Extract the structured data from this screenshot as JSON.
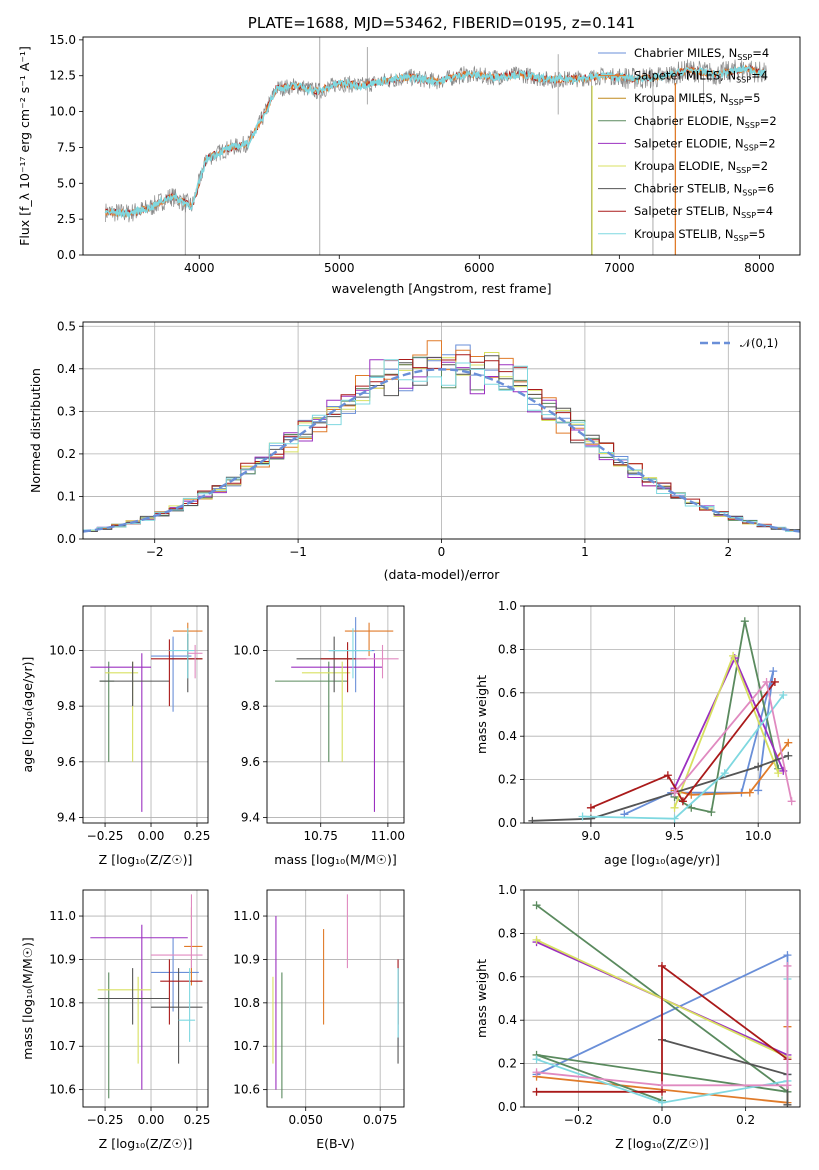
{
  "colors": [
    "#6a8fd8",
    "#e07b2a",
    "#c08a1e",
    "#5a8a5e",
    "#9b30c0",
    "#d8e060",
    "#555555",
    "#aa1a1a",
    "#7fd8e0",
    "#e08ac0"
  ],
  "chart_data": [
    {
      "id": "spectrum",
      "type": "line",
      "title": "PLATE=1688, MJD=53462, FIBERID=0195, z=0.141",
      "xlabel": "wavelength [Angstrom, rest frame]",
      "ylabel": "Flux [f_λ 10⁻¹⁷ erg cm⁻² s⁻¹ A⁻¹]",
      "xlim": [
        3170,
        8290
      ],
      "ylim": [
        0,
        15.2
      ],
      "xticks": [
        "4000",
        "5000",
        "6000",
        "7000",
        "8000"
      ],
      "yticks": [
        "0.0",
        "2.5",
        "5.0",
        "7.5",
        "10.0",
        "12.5",
        "15.0"
      ],
      "envelope": [
        [
          3330,
          3.0
        ],
        [
          3500,
          2.9
        ],
        [
          3650,
          3.3
        ],
        [
          3800,
          4.1
        ],
        [
          3950,
          3.4
        ],
        [
          4050,
          6.7
        ],
        [
          4200,
          7.4
        ],
        [
          4350,
          7.8
        ],
        [
          4450,
          9.5
        ],
        [
          4550,
          11.6
        ],
        [
          4700,
          11.8
        ],
        [
          4850,
          11.4
        ],
        [
          5000,
          12.0
        ],
        [
          5150,
          11.8
        ],
        [
          5300,
          12.1
        ],
        [
          5500,
          12.4
        ],
        [
          5700,
          12.1
        ],
        [
          5900,
          12.6
        ],
        [
          6100,
          12.4
        ],
        [
          6300,
          12.6
        ],
        [
          6500,
          12.2
        ],
        [
          6700,
          12.3
        ],
        [
          6900,
          12.5
        ],
        [
          7100,
          12.3
        ],
        [
          7300,
          12.4
        ],
        [
          7500,
          12.9
        ],
        [
          7700,
          12.6
        ],
        [
          7900,
          13.0
        ],
        [
          8050,
          12.6
        ]
      ],
      "legend_position": "upper right",
      "legend": [
        {
          "label": "Chabrier MILES, N",
          "sub": "SSP",
          "tail": "=4",
          "color_index": 0
        },
        {
          "label": "Salpeter MILES, N",
          "sub": "SSP",
          "tail": "=4",
          "color_index": 1
        },
        {
          "label": "Kroupa MILES, N",
          "sub": "SSP",
          "tail": "=5",
          "color_index": 2
        },
        {
          "label": "Chabrier ELODIE, N",
          "sub": "SSP",
          "tail": "=2",
          "color_index": 3
        },
        {
          "label": "Salpeter ELODIE, N",
          "sub": "SSP",
          "tail": "=2",
          "color_index": 4
        },
        {
          "label": "Kroupa ELODIE, N",
          "sub": "SSP",
          "tail": "=2",
          "color_index": 5
        },
        {
          "label": "Chabrier STELIB, N",
          "sub": "SSP",
          "tail": "=6",
          "color_index": 6
        },
        {
          "label": "Salpeter STELIB, N",
          "sub": "SSP",
          "tail": "=4",
          "color_index": 7
        },
        {
          "label": "Kroupa STELIB, N",
          "sub": "SSP",
          "tail": "=5",
          "color_index": 8
        }
      ]
    },
    {
      "id": "histogram",
      "type": "bar",
      "xlabel": "(data-model)/error",
      "ylabel": "Normed distribution",
      "xlim": [
        -2.5,
        2.5
      ],
      "ylim": [
        0,
        0.51
      ],
      "xticks": [
        "−2",
        "−1",
        "0",
        "1",
        "2"
      ],
      "yticks": [
        "0.0",
        "0.1",
        "0.2",
        "0.3",
        "0.4",
        "0.5"
      ],
      "legend": "𝒩(0,1)",
      "legend_position": "upper right",
      "bin_width": 0.1
    },
    {
      "id": "age_vs_Z",
      "type": "scatter",
      "xlabel": "Z [log₁₀(Z/Z☉)]",
      "ylabel": "age  [log₁₀(age/yr)]",
      "xlim": [
        -0.37,
        0.31
      ],
      "ylim": [
        9.38,
        10.16
      ],
      "xticks": [
        "−0.25",
        "0.00",
        "0.25"
      ],
      "yticks": [
        "9.4",
        "9.6",
        "9.8",
        "10.0"
      ],
      "points": [
        {
          "c": 0,
          "x": 0.12,
          "xe": [
            0.0,
            0.22
          ],
          "y": 9.98,
          "ye": [
            9.78,
            10.05
          ]
        },
        {
          "c": 1,
          "x": 0.2,
          "xe": [
            0.12,
            0.28
          ],
          "y": 10.07,
          "ye": [
            9.98,
            10.1
          ]
        },
        {
          "c": 3,
          "x": -0.23,
          "xe": [
            -0.28,
            -0.2
          ],
          "y": 9.89,
          "ye": [
            9.6,
            9.96
          ]
        },
        {
          "c": 4,
          "x": -0.05,
          "xe": [
            -0.33,
            0.0
          ],
          "y": 9.94,
          "ye": [
            9.42,
            9.99
          ]
        },
        {
          "c": 5,
          "x": -0.1,
          "xe": [
            -0.25,
            -0.07
          ],
          "y": 9.92,
          "ye": [
            9.6,
            9.96
          ]
        },
        {
          "c": 6,
          "x": -0.1,
          "xe": [
            -0.28,
            0.1
          ],
          "y": 9.89,
          "ye": [
            9.8,
            9.96
          ]
        },
        {
          "c": 6,
          "x": 0.2,
          "xe": [
            0.1,
            0.28
          ],
          "y": 9.97,
          "ye": [
            9.85,
            10.06
          ]
        },
        {
          "c": 7,
          "x": 0.1,
          "xe": [
            0.0,
            0.28
          ],
          "y": 9.97,
          "ye": [
            9.8,
            10.04
          ]
        },
        {
          "c": 8,
          "x": 0.2,
          "xe": [
            0.1,
            0.24
          ],
          "y": 10.0,
          "ye": [
            9.9,
            10.08
          ]
        },
        {
          "c": 9,
          "x": 0.24,
          "xe": [
            0.2,
            0.28
          ],
          "y": 9.99,
          "ye": [
            9.9,
            10.02
          ]
        }
      ]
    },
    {
      "id": "age_vs_mass",
      "type": "scatter",
      "xlabel": "mass [log₁₀(M/M☉)]",
      "ylabel": "",
      "xlim": [
        10.55,
        11.06
      ],
      "ylim": [
        9.38,
        10.16
      ],
      "xticks": [
        "10.75",
        "11.00"
      ],
      "yticks": [
        "9.4",
        "9.6",
        "9.8",
        "10.0"
      ],
      "points": [
        {
          "c": 0,
          "x": 10.88,
          "xe": [
            10.78,
            10.95
          ],
          "y": 10.0,
          "ye": [
            9.85,
            10.12
          ]
        },
        {
          "c": 1,
          "x": 10.93,
          "xe": [
            10.84,
            11.02
          ],
          "y": 10.07,
          "ye": [
            9.98,
            10.1
          ]
        },
        {
          "c": 3,
          "x": 10.78,
          "xe": [
            10.58,
            10.85
          ],
          "y": 9.89,
          "ye": [
            9.6,
            9.96
          ]
        },
        {
          "c": 4,
          "x": 10.95,
          "xe": [
            10.64,
            10.98
          ],
          "y": 9.94,
          "ye": [
            9.42,
            9.99
          ]
        },
        {
          "c": 5,
          "x": 10.83,
          "xe": [
            10.68,
            10.86
          ],
          "y": 9.92,
          "ye": [
            9.6,
            9.96
          ]
        },
        {
          "c": 6,
          "x": 10.8,
          "xe": [
            10.66,
            10.88
          ],
          "y": 9.97,
          "ye": [
            9.85,
            10.05
          ]
        },
        {
          "c": 7,
          "x": 10.85,
          "xe": [
            10.75,
            10.92
          ],
          "y": 9.97,
          "ye": [
            9.85,
            10.03
          ]
        },
        {
          "c": 8,
          "x": 10.87,
          "xe": [
            10.78,
            10.94
          ],
          "y": 10.0,
          "ye": [
            9.9,
            10.08
          ]
        },
        {
          "c": 9,
          "x": 10.98,
          "xe": [
            10.88,
            11.04
          ],
          "y": 9.97,
          "ye": [
            9.9,
            10.02
          ]
        }
      ]
    },
    {
      "id": "massweight_vs_age",
      "type": "line",
      "xlabel": "age  [log₁₀(age/yr)]",
      "ylabel": "mass weight",
      "xlim": [
        8.6,
        10.25
      ],
      "ylim": [
        0,
        1.0
      ],
      "xticks": [
        "9.0",
        "9.5",
        "10.0"
      ],
      "yticks": [
        "0.0",
        "0.2",
        "0.4",
        "0.6",
        "0.8",
        "1.0"
      ],
      "series": [
        {
          "c": 0,
          "points": [
            [
              9.2,
              0.04
            ],
            [
              9.48,
              0.14
            ],
            [
              9.9,
              0.14
            ],
            [
              10.09,
              0.7
            ],
            [
              10.0,
              0.15
            ]
          ]
        },
        {
          "c": 1,
          "points": [
            [
              9.5,
              0.15
            ],
            [
              9.6,
              0.13
            ],
            [
              9.95,
              0.14
            ],
            [
              10.18,
              0.37
            ]
          ]
        },
        {
          "c": 3,
          "points": [
            [
              9.5,
              0.12
            ],
            [
              9.6,
              0.07
            ],
            [
              9.72,
              0.05
            ],
            [
              9.92,
              0.93
            ],
            [
              10.12,
              0.25
            ]
          ]
        },
        {
          "c": 4,
          "points": [
            [
              9.5,
              0.16
            ],
            [
              9.86,
              0.76
            ],
            [
              10.15,
              0.24
            ]
          ]
        },
        {
          "c": 5,
          "points": [
            [
              9.5,
              0.07
            ],
            [
              9.85,
              0.77
            ],
            [
              10.12,
              0.23
            ]
          ]
        },
        {
          "c": 6,
          "points": [
            [
              8.65,
              0.01
            ],
            [
              9.0,
              0.02
            ],
            [
              9.5,
              0.14
            ],
            [
              10.0,
              0.26
            ],
            [
              10.18,
              0.31
            ]
          ]
        },
        {
          "c": 7,
          "points": [
            [
              9.0,
              0.07
            ],
            [
              9.46,
              0.22
            ],
            [
              9.55,
              0.1
            ],
            [
              10.1,
              0.65
            ]
          ]
        },
        {
          "c": 8,
          "points": [
            [
              8.95,
              0.03
            ],
            [
              9.5,
              0.02
            ],
            [
              9.8,
              0.23
            ],
            [
              10.15,
              0.59
            ]
          ]
        },
        {
          "c": 9,
          "points": [
            [
              9.5,
              0.14
            ],
            [
              10.05,
              0.65
            ],
            [
              10.2,
              0.1
            ]
          ]
        }
      ]
    },
    {
      "id": "mass_vs_Z",
      "type": "scatter",
      "xlabel": "Z [log₁₀(Z/Z☉)]",
      "ylabel": "mass [log₁₀(M/M☉)]",
      "xlim": [
        -0.37,
        0.31
      ],
      "ylim": [
        10.56,
        11.06
      ],
      "xticks": [
        "−0.25",
        "0.00",
        "0.25"
      ],
      "yticks": [
        "10.6",
        "10.7",
        "10.8",
        "10.9",
        "11.0"
      ],
      "points": [
        {
          "c": 0,
          "x": 0.12,
          "xe": [
            0.0,
            0.26
          ],
          "y": 10.87,
          "ye": [
            10.78,
            10.95
          ]
        },
        {
          "c": 1,
          "x": 0.22,
          "xe": [
            0.18,
            0.28
          ],
          "y": 10.93,
          "ye": [
            10.84,
            11.02
          ]
        },
        {
          "c": 3,
          "x": -0.23,
          "xe": [
            -0.29,
            -0.2
          ],
          "y": 10.81,
          "ye": [
            10.58,
            10.87
          ]
        },
        {
          "c": 4,
          "x": -0.05,
          "xe": [
            -0.33,
            0.2
          ],
          "y": 10.95,
          "ye": [
            10.6,
            10.98
          ]
        },
        {
          "c": 5,
          "x": -0.07,
          "xe": [
            -0.29,
            0.0
          ],
          "y": 10.83,
          "ye": [
            10.66,
            10.86
          ]
        },
        {
          "c": 6,
          "x": 0.15,
          "xe": [
            0.0,
            0.28
          ],
          "y": 10.79,
          "ye": [
            10.66,
            10.88
          ]
        },
        {
          "c": 6,
          "x": -0.1,
          "xe": [
            -0.28,
            0.1
          ],
          "y": 10.81,
          "ye": [
            10.75,
            10.88
          ]
        },
        {
          "c": 7,
          "x": 0.1,
          "xe": [
            0.05,
            0.28
          ],
          "y": 10.85,
          "ye": [
            10.75,
            10.9
          ]
        },
        {
          "c": 8,
          "x": 0.21,
          "xe": [
            0.15,
            0.24
          ],
          "y": 10.76,
          "ye": [
            10.71,
            10.88
          ]
        },
        {
          "c": 9,
          "x": 0.22,
          "xe": [
            0.0,
            0.28
          ],
          "y": 10.91,
          "ye": [
            10.88,
            11.05
          ]
        }
      ]
    },
    {
      "id": "mass_vs_EBV",
      "type": "scatter",
      "xlabel": "E(B-V)",
      "ylabel": "",
      "xlim": [
        0.037,
        0.083
      ],
      "ylim": [
        10.56,
        11.06
      ],
      "xticks": [
        "0.050",
        "0.075"
      ],
      "yticks": [
        "10.6",
        "10.7",
        "10.8",
        "10.9",
        "11.0"
      ],
      "points": [
        {
          "c": 0,
          "x": 0.081,
          "ye": [
            10.7,
            10.9
          ]
        },
        {
          "c": 1,
          "x": 0.056,
          "ye": [
            10.75,
            10.97
          ]
        },
        {
          "c": 3,
          "x": 0.042,
          "ye": [
            10.58,
            10.87
          ]
        },
        {
          "c": 4,
          "x": 0.04,
          "ye": [
            10.6,
            11.0
          ]
        },
        {
          "c": 5,
          "x": 0.039,
          "ye": [
            10.66,
            10.86
          ]
        },
        {
          "c": 6,
          "x": 0.081,
          "ye": [
            10.66,
            10.88
          ]
        },
        {
          "c": 7,
          "x": 0.081,
          "ye": [
            10.75,
            10.9
          ]
        },
        {
          "c": 8,
          "x": 0.081,
          "ye": [
            10.72,
            10.88
          ]
        },
        {
          "c": 9,
          "x": 0.064,
          "ye": [
            10.88,
            11.05
          ]
        }
      ]
    },
    {
      "id": "massweight_vs_Z",
      "type": "line",
      "xlabel": "Z [log₁₀(Z/Z☉)]",
      "ylabel": "mass weight",
      "xlim": [
        -0.33,
        0.33
      ],
      "ylim": [
        0,
        1.0
      ],
      "xticks": [
        "−0.2",
        "0.0",
        "0.2"
      ],
      "yticks": [
        "0.0",
        "0.2",
        "0.4",
        "0.6",
        "0.8",
        "1.0"
      ],
      "series": [
        {
          "c": 0,
          "points": [
            [
              -0.3,
              0.15
            ],
            [
              0.3,
              0.7
            ],
            [
              0.3,
              0.15
            ]
          ]
        },
        {
          "c": 1,
          "points": [
            [
              -0.3,
              0.14
            ],
            [
              0.3,
              0.02
            ],
            [
              0.3,
              0.37
            ]
          ]
        },
        {
          "c": 3,
          "points": [
            [
              -0.3,
              0.93
            ],
            [
              0.3,
              0.07
            ],
            [
              -0.3,
              0.24
            ],
            [
              0.0,
              0.03
            ]
          ]
        },
        {
          "c": 4,
          "points": [
            [
              -0.3,
              0.76
            ],
            [
              0.3,
              0.24
            ]
          ]
        },
        {
          "c": 5,
          "points": [
            [
              -0.3,
              0.77
            ],
            [
              0.3,
              0.23
            ]
          ]
        },
        {
          "c": 6,
          "points": [
            [
              0.0,
              0.31
            ],
            [
              0.3,
              0.15
            ],
            [
              0.3,
              0.01
            ]
          ]
        },
        {
          "c": 7,
          "points": [
            [
              -0.3,
              0.07
            ],
            [
              0.0,
              0.07
            ],
            [
              0.0,
              0.65
            ],
            [
              0.3,
              0.22
            ]
          ]
        },
        {
          "c": 8,
          "points": [
            [
              -0.3,
              0.22
            ],
            [
              0.0,
              0.02
            ],
            [
              0.3,
              0.12
            ],
            [
              0.3,
              0.59
            ]
          ]
        },
        {
          "c": 9,
          "points": [
            [
              -0.3,
              0.16
            ],
            [
              0.0,
              0.1
            ],
            [
              0.3,
              0.1
            ],
            [
              0.3,
              0.65
            ]
          ]
        }
      ]
    }
  ]
}
